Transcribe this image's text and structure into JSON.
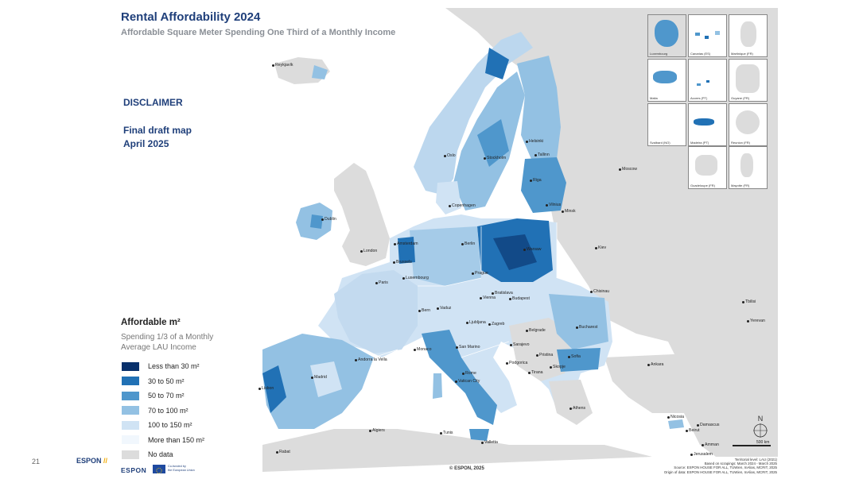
{
  "header": {
    "title": "Rental Affordability 2024",
    "subtitle": "Affordable Square Meter Spending One Third of a Monthly Income"
  },
  "disclaimer": {
    "heading": "DISCLAIMER",
    "line1": "Final draft map",
    "line2": "April 2025"
  },
  "legend": {
    "title": "Affordable  m²",
    "subtitle_line1": "Spending 1/3 of a Monthly",
    "subtitle_line2": "Average LAU Income",
    "classes": [
      {
        "label": "Less than 30 m²",
        "color": "#08306b"
      },
      {
        "label": "30 to 50 m²",
        "color": "#2171b5"
      },
      {
        "label": "50 to 70 m²",
        "color": "#4f97cc"
      },
      {
        "label": "70 to 100 m²",
        "color": "#93c1e3"
      },
      {
        "label": "100 to 150 m²",
        "color": "#d0e3f4"
      },
      {
        "label": "More than 150 m²",
        "color": "#f1f7fd"
      },
      {
        "label": "No data",
        "color": "#dcdcdc"
      }
    ]
  },
  "cities": {
    "reykjavik": "Reykjavík",
    "oslo": "Oslo",
    "stockholm": "Stockholm",
    "helsinki": "Helsinki",
    "tallinn": "Tallinn",
    "riga": "Riga",
    "vilnius": "Vilnius",
    "moscow": "Moscow",
    "minsk": "Minsk",
    "copenhagen": "Copenhagen",
    "dublin": "Dublin",
    "london": "London",
    "amsterdam": "Amsterdam",
    "brussels": "Brussels",
    "berlin": "Berlin",
    "warsaw": "Warsaw",
    "kiev": "Kiev",
    "luxembourg": "Luxembourg",
    "paris": "Paris",
    "prague": "Prague",
    "vienna": "Vienna",
    "bratislava": "Bratislava",
    "budapest": "Budapest",
    "chisinau": "Chisinau",
    "bern": "Bern",
    "vaduz": "Vaduz",
    "ljubljana": "Ljubljana",
    "zagreb": "Zagreb",
    "bucharest": "Bucharest",
    "belgrade": "Belgrade",
    "sarajevo": "Sarajevo",
    "andorra": "Andorra la Vella",
    "monaco": "Monaco",
    "san_marino": "San Marino",
    "pristina": "Pristina",
    "sofia": "Sofia",
    "podgorica": "Podgorica",
    "skopje": "Skopje",
    "tirana": "Tirana",
    "madrid": "Madrid",
    "lisbon": "Lisbon",
    "rome": "Rome",
    "vatican": "Vatican City",
    "ankara": "Ankara",
    "tbilisi": "Tbilisi",
    "yerevan": "Yerevan",
    "athens": "Athens",
    "nicosia": "Nicosia",
    "beirut": "Beirut",
    "damascus": "Damascus",
    "amman": "Amman",
    "jerusalem": "Jerusalem",
    "algiers": "Algiers",
    "tunis": "Tunis",
    "valletta": "Valletta",
    "rabat": "Rabat"
  },
  "insets": [
    {
      "label": "Luxembourg"
    },
    {
      "label": "Canarias (ES)"
    },
    {
      "label": "Martinique (FR)"
    },
    {
      "label": "Malta"
    },
    {
      "label": "Acores (PT)"
    },
    {
      "label": "Guyane (FR)"
    },
    {
      "label": "Svalbard (NO)"
    },
    {
      "label": "Madeira (PT)"
    },
    {
      "label": "Reunion (FR)"
    },
    {
      "label": "Guadeloupe (FR)"
    },
    {
      "label": "Mayotte (FR)"
    }
  ],
  "scale": {
    "label": "500 km"
  },
  "north": {
    "label": "N"
  },
  "footer": {
    "page_number": "21",
    "espon_mark": "ESPON",
    "espon_slashes": "//",
    "logo_text": "ESPON",
    "eu_line1": "Co-funded by",
    "eu_line2": "the European Union",
    "copyright": "© ESPON, 2025",
    "source_line1": "Territorial level: LAU (2021)",
    "source_line2": "Based on scrapings: March 2024 - March 2025",
    "source_line3": "Source: ESPON HOUSE FOR ALL, TUWien, InAlias, MCRIT, 2025",
    "source_line4": "Origin of data: ESPON HOUSE FOR ALL, TUWien, InAlias, MCRIT, 2025"
  }
}
